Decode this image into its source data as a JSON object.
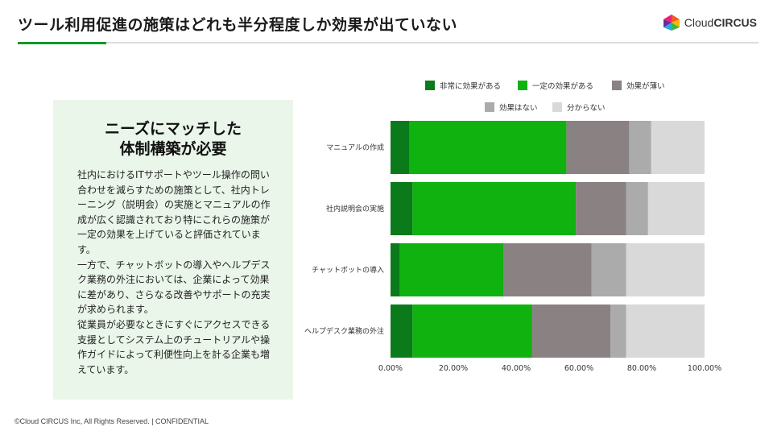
{
  "slide": {
    "title": "ツール利用促進の施策はどれも半分程度しか効果が出ていない",
    "footer": "©Cloud CIRCUS Inc, All Rights Reserved. | CONFIDENTIAL"
  },
  "logo": {
    "prefix": "Cloud",
    "brand": "CIRCUS"
  },
  "box": {
    "heading_line1": "ニーズにマッチした",
    "heading_line2": "体制構築が必要",
    "para1": "社内におけるITサポートやツール操作の問い合わせを減らすための施策として、社内トレーニング（説明会）の実施とマニュアルの作成が広く認識されており特にこれらの施策が一定の効果を上げていると評価されています。",
    "para2": "一方で、チャットボットの導入やヘルプデスク業務の外注においては、企業によって効果に差があり、さらなる改善やサポートの充実が求められます。",
    "para3": "従業員が必要なときにすぐにアクセスできる支援としてシステム上のチュートリアルや操作ガイドによって利便性向上を計る企業も増えています。"
  },
  "colors": {
    "accent": "#0f9a2a",
    "box_bg": "#eaf6ea"
  },
  "chart_data": {
    "type": "bar",
    "orientation": "horizontal",
    "stacked": true,
    "categories": [
      "マニュアルの作成",
      "社内説明会の実施",
      "チャットボットの導入",
      "ヘルプデスク業務の外注"
    ],
    "series": [
      {
        "name": "非常に効果がある",
        "color": "#0b7a1b",
        "values": [
          6,
          7,
          3,
          7
        ]
      },
      {
        "name": "一定の効果がある",
        "color": "#0fb20f",
        "values": [
          50,
          52,
          33,
          38
        ]
      },
      {
        "name": "効果が薄い",
        "color": "#8a8282",
        "values": [
          20,
          16,
          28,
          25
        ]
      },
      {
        "name": "効果はない",
        "color": "#ababab",
        "values": [
          7,
          7,
          11,
          5
        ]
      },
      {
        "name": "分からない",
        "color": "#d9d9d9",
        "values": [
          17,
          18,
          25,
          25
        ]
      }
    ],
    "xlim": [
      0,
      100
    ],
    "xticks": [
      "0.00%",
      "20.00%",
      "40.00%",
      "60.00%",
      "80.00%",
      "100.00%"
    ],
    "legend_position": "top",
    "grid": false
  }
}
